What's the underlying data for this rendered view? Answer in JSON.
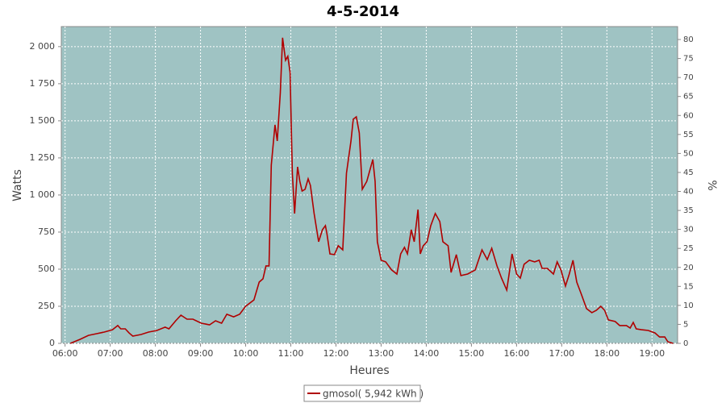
{
  "chart_data": {
    "type": "line",
    "title": "4-5-2014",
    "xlabel": "Heures",
    "ylabel": "Watts",
    "y2label": "%",
    "x": [
      "06:07",
      "06:20",
      "06:31",
      "06:42",
      "06:52",
      "07:03",
      "07:10",
      "07:14",
      "07:20",
      "07:25",
      "07:30",
      "07:41",
      "07:51",
      "08:02",
      "08:13",
      "08:18",
      "08:27",
      "08:34",
      "08:42",
      "08:50",
      "09:01",
      "09:12",
      "09:20",
      "09:28",
      "09:35",
      "09:44",
      "09:52",
      "10:00",
      "10:11",
      "10:18",
      "10:23",
      "10:27",
      "10:31",
      "10:34",
      "10:39",
      "10:42",
      "10:46",
      "10:49",
      "10:53",
      "10:56",
      "10:59",
      "11:02",
      "11:05",
      "11:09",
      "11:12",
      "11:15",
      "11:19",
      "11:23",
      "11:26",
      "11:31",
      "11:37",
      "11:42",
      "11:46",
      "11:48",
      "11:52",
      "11:58",
      "12:03",
      "12:09",
      "12:14",
      "12:20",
      "12:23",
      "12:27",
      "12:31",
      "12:35",
      "12:41",
      "12:44",
      "12:49",
      "12:52",
      "12:55",
      "13:00",
      "13:06",
      "13:14",
      "13:21",
      "13:26",
      "13:31",
      "13:35",
      "13:40",
      "13:44",
      "13:49",
      "13:52",
      "13:56",
      "14:01",
      "14:06",
      "14:12",
      "14:18",
      "14:22",
      "14:29",
      "14:33",
      "14:40",
      "14:46",
      "14:55",
      "15:05",
      "15:14",
      "15:21",
      "15:27",
      "15:34",
      "15:40",
      "15:47",
      "15:54",
      "16:00",
      "16:05",
      "16:10",
      "16:17",
      "16:24",
      "16:30",
      "16:34",
      "16:41",
      "16:49",
      "16:54",
      "16:59",
      "17:05",
      "17:10",
      "17:15",
      "17:20",
      "17:26",
      "17:33",
      "17:40",
      "17:46",
      "17:52",
      "17:57",
      "18:02",
      "18:11",
      "18:17",
      "18:26",
      "18:31",
      "18:35",
      "18:39",
      "18:46",
      "18:55",
      "19:04",
      "19:10",
      "19:17",
      "19:21",
      "19:28"
    ],
    "series": [
      {
        "name": "gmosol( 5,942 kWh )",
        "color": "#b00000",
        "values": [
          0,
          27,
          54,
          65,
          76,
          92,
          120,
          98,
          98,
          70,
          49,
          60,
          76,
          87,
          109,
          98,
          152,
          190,
          163,
          163,
          136,
          125,
          152,
          136,
          196,
          179,
          196,
          250,
          293,
          413,
          435,
          522,
          522,
          1201,
          1473,
          1364,
          1690,
          2060,
          1908,
          1935,
          1826,
          1147,
          875,
          1190,
          1092,
          1027,
          1038,
          1109,
          1065,
          875,
          685,
          766,
          793,
          739,
          603,
          598,
          658,
          630,
          1147,
          1364,
          1511,
          1527,
          1418,
          1038,
          1092,
          1147,
          1239,
          1092,
          685,
          560,
          549,
          495,
          467,
          603,
          647,
          603,
          766,
          685,
          902,
          603,
          658,
          685,
          793,
          875,
          821,
          685,
          658,
          478,
          598,
          457,
          467,
          495,
          630,
          565,
          641,
          522,
          440,
          359,
          603,
          467,
          440,
          533,
          560,
          549,
          560,
          505,
          505,
          467,
          549,
          495,
          386,
          467,
          560,
          413,
          332,
          234,
          207,
          223,
          250,
          223,
          158,
          147,
          120,
          120,
          103,
          141,
          98,
          92,
          87,
          70,
          43,
          43,
          11,
          0
        ]
      }
    ],
    "xlim": [
      "05:55",
      "19:34"
    ],
    "xticks": [
      "06:00",
      "07:00",
      "08:00",
      "09:00",
      "10:00",
      "11:00",
      "12:00",
      "13:00",
      "14:00",
      "15:00",
      "16:00",
      "17:00",
      "18:00",
      "19:00"
    ],
    "ylim": [
      0,
      2135
    ],
    "yticks": [
      0,
      250,
      500,
      750,
      {
        "value": 1000,
        "label": "1 000"
      },
      {
        "value": 1250,
        "label": "1 250"
      },
      {
        "value": 1500,
        "label": "1 500"
      },
      {
        "value": 1750,
        "label": "1 750"
      },
      {
        "value": 2000,
        "label": "2 000"
      }
    ],
    "y2lim": [
      0,
      83.4
    ],
    "y2ticks": [
      0,
      5,
      10,
      15,
      20,
      25,
      30,
      35,
      40,
      45,
      50,
      55,
      60,
      65,
      70,
      75,
      80
    ],
    "grid": true,
    "background": "#9fc3c3",
    "legend": "bottom"
  }
}
